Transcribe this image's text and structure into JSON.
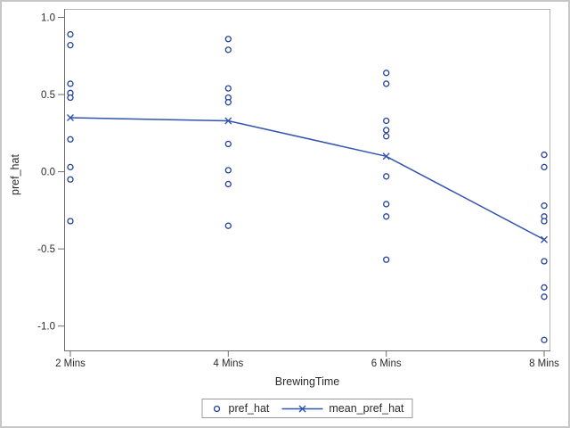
{
  "chart_data": {
    "type": "scatter",
    "title": "",
    "xlabel": "BrewingTime",
    "ylabel": "pref_hat",
    "categories": [
      "2 Mins",
      "4 Mins",
      "6 Mins",
      "8 Mins"
    ],
    "y_ticks": [
      1.0,
      0.5,
      0.0,
      -0.5,
      -1.0
    ],
    "y_tick_labels": [
      "1.0",
      "0.5",
      "0.0",
      "-0.5",
      "-1.0"
    ],
    "ylim": [
      -1.17,
      1.05
    ],
    "grid": false,
    "legend_position": "bottom-center",
    "series": [
      {
        "name": "pref_hat",
        "type": "scatter",
        "marker": "open-circle",
        "points_by_category": [
          [
            0.89,
            0.82,
            0.57,
            0.51,
            0.48,
            0.21,
            0.03,
            -0.05,
            -0.32
          ],
          [
            0.86,
            0.79,
            0.54,
            0.48,
            0.45,
            0.18,
            0.01,
            -0.08,
            -0.35
          ],
          [
            0.64,
            0.57,
            0.33,
            0.27,
            0.23,
            -0.03,
            -0.21,
            -0.29,
            -0.57
          ],
          [
            0.11,
            0.03,
            -0.22,
            -0.29,
            -0.32,
            -0.58,
            -0.75,
            -0.81,
            -1.09
          ]
        ]
      },
      {
        "name": "mean_pref_hat",
        "type": "line",
        "marker": "x",
        "values": [
          0.35,
          0.33,
          0.1,
          -0.44
        ]
      }
    ],
    "colors": {
      "marker": "#24429e",
      "line": "#3354ae",
      "axis": "#6e6e6e",
      "frame": "#b5b5b5",
      "text": "#2b2b2b",
      "outer_border": "#c7c7c7"
    }
  }
}
